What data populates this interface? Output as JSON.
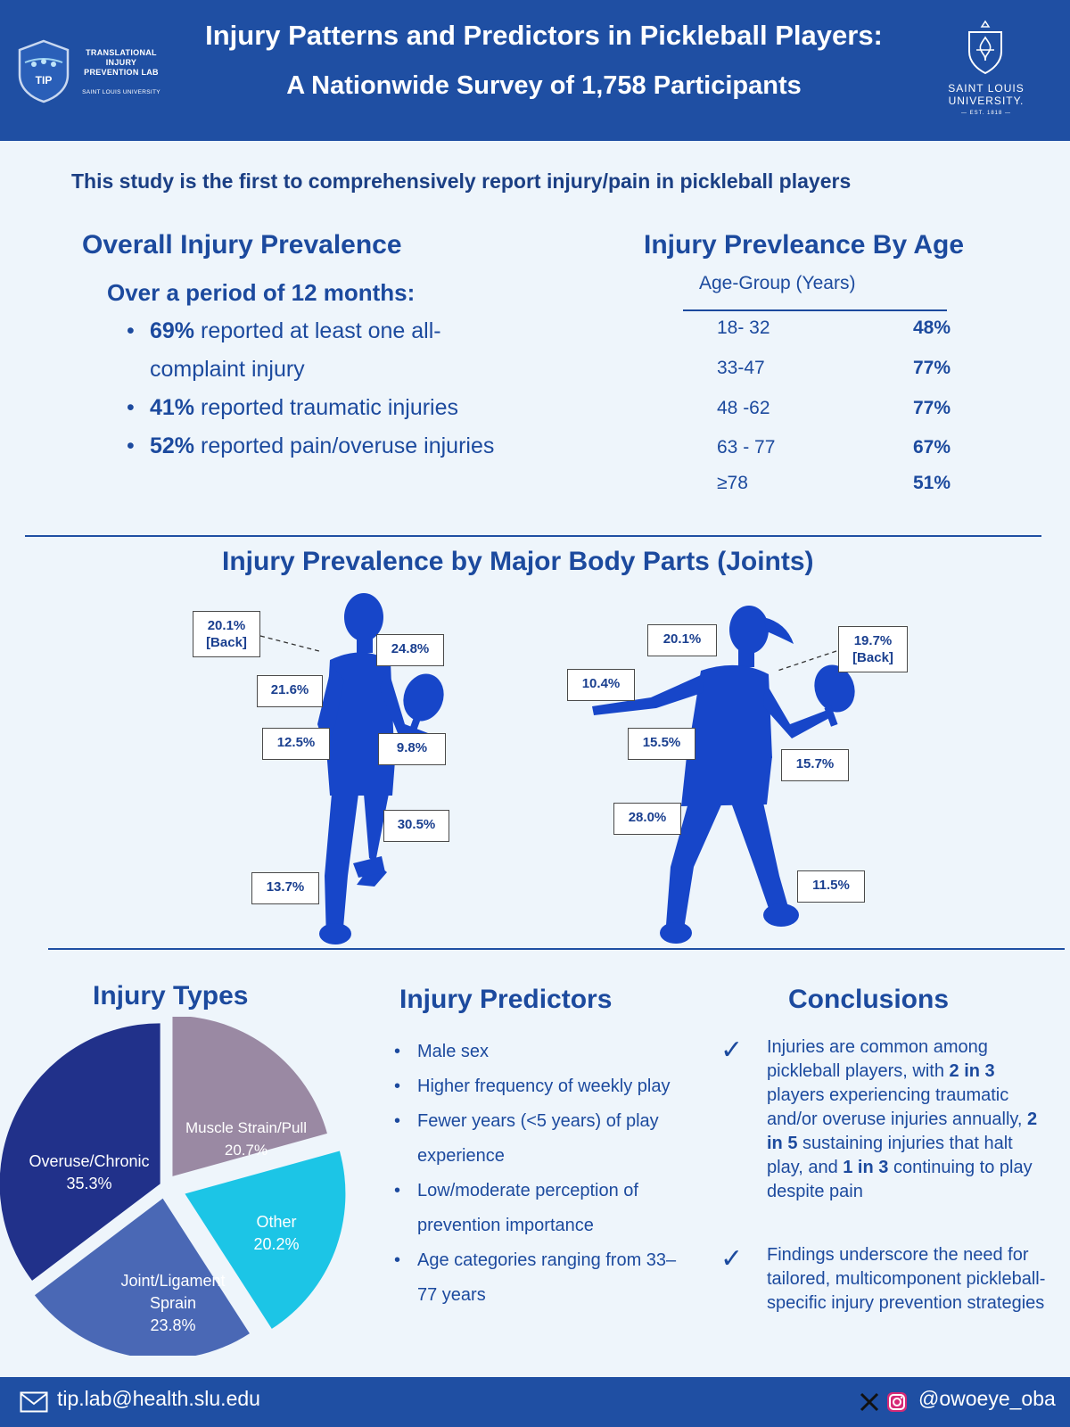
{
  "header": {
    "tip_logo_text": "TIP",
    "tip_name_line1": "TRANSLATIONAL",
    "tip_name_line2": "INJURY",
    "tip_name_line3": "PREVENTION LAB",
    "tip_sub": "SAINT LOUIS UNIVERSITY",
    "title_line1": "Injury Patterns and Predictors in Pickleball Players:",
    "title_line2": "A Nationwide Survey of 1,758 Participants",
    "slu_name_line1": "SAINT LOUIS",
    "slu_name_line2": "UNIVERSITY.",
    "slu_est": "EST. 1818"
  },
  "subtitle": "This study is the first to comprehensively report injury/pain in pickleball players",
  "overall": {
    "title": "Overall Injury Prevalence",
    "period": "Over a period of 12 months:",
    "items": [
      {
        "value": "69%",
        "text": "reported at least one all-complaint injury"
      },
      {
        "value": "41%",
        "text": "reported traumatic injuries"
      },
      {
        "value": "52%",
        "text": "reported pain/overuse injuries"
      }
    ]
  },
  "by_age": {
    "title": "Injury Prevleance By Age",
    "header": "Age-Group (Years)",
    "rows": [
      {
        "group": "18- 32",
        "pct": "48%"
      },
      {
        "group": "33-47",
        "pct": "77%"
      },
      {
        "group": "48 -62",
        "pct": "77%"
      },
      {
        "group": "63 - 77",
        "pct": "67%"
      },
      {
        "group": "≥78",
        "pct": "51%"
      }
    ]
  },
  "body_parts": {
    "title": "Injury Prevalence by Major Body Parts (Joints)",
    "male": {
      "back_pct": "20.1%",
      "back_label": "[Back]",
      "labels": [
        "24.8%",
        "21.6%",
        "12.5%",
        "9.8%",
        "30.5%",
        "13.7%"
      ]
    },
    "female": {
      "back_pct": "19.7%",
      "back_label": "[Back]",
      "labels": [
        "20.1%",
        "10.4%",
        "15.5%",
        "15.7%",
        "28.0%",
        "11.5%"
      ]
    }
  },
  "injury_types": {
    "title": "Injury Types",
    "colors": {
      "overuse": "#21318a",
      "muscle": "#9a89a3",
      "other": "#1cc5e6",
      "joint": "#4a68b5"
    },
    "labels": {
      "overuse_name": "Overuse/Chronic",
      "overuse_pct": "35.3%",
      "muscle_name": "Muscle Strain/Pull",
      "muscle_pct": "20.7%",
      "other_name": "Other",
      "other_pct": "20.2%",
      "joint_name_1": "Joint/Ligament",
      "joint_name_2": "Sprain",
      "joint_pct": "23.8%"
    }
  },
  "chart_data": {
    "type": "pie",
    "title": "Injury Types",
    "categories": [
      "Overuse/Chronic",
      "Muscle Strain/Pull",
      "Other",
      "Joint/Ligament Sprain"
    ],
    "values": [
      35.3,
      20.7,
      20.2,
      23.8
    ]
  },
  "predictors": {
    "title": "Injury Predictors",
    "items": [
      "Male sex",
      "Higher frequency of weekly play",
      "Fewer years (<5 years) of play experience",
      "Low/moderate perception of prevention importance",
      "Age categories ranging from 33–77 years"
    ]
  },
  "conclusions": {
    "title": "Conclusions",
    "c1_a": "Injuries are common among pickleball players, with ",
    "c1_b": "2 in 3",
    "c1_c": " players experiencing traumatic and/or overuse injuries annually, ",
    "c1_d": "2 in 5",
    "c1_e": " sustaining injuries that halt play, and ",
    "c1_f": "1 in 3",
    "c1_g": " continuing to play despite pain",
    "c2": "Findings underscore the need for tailored, multicomponent pickleball-specific injury prevention strategies"
  },
  "footer": {
    "email": "tip.lab@health.slu.edu",
    "handle": "@owoeye_oba"
  }
}
